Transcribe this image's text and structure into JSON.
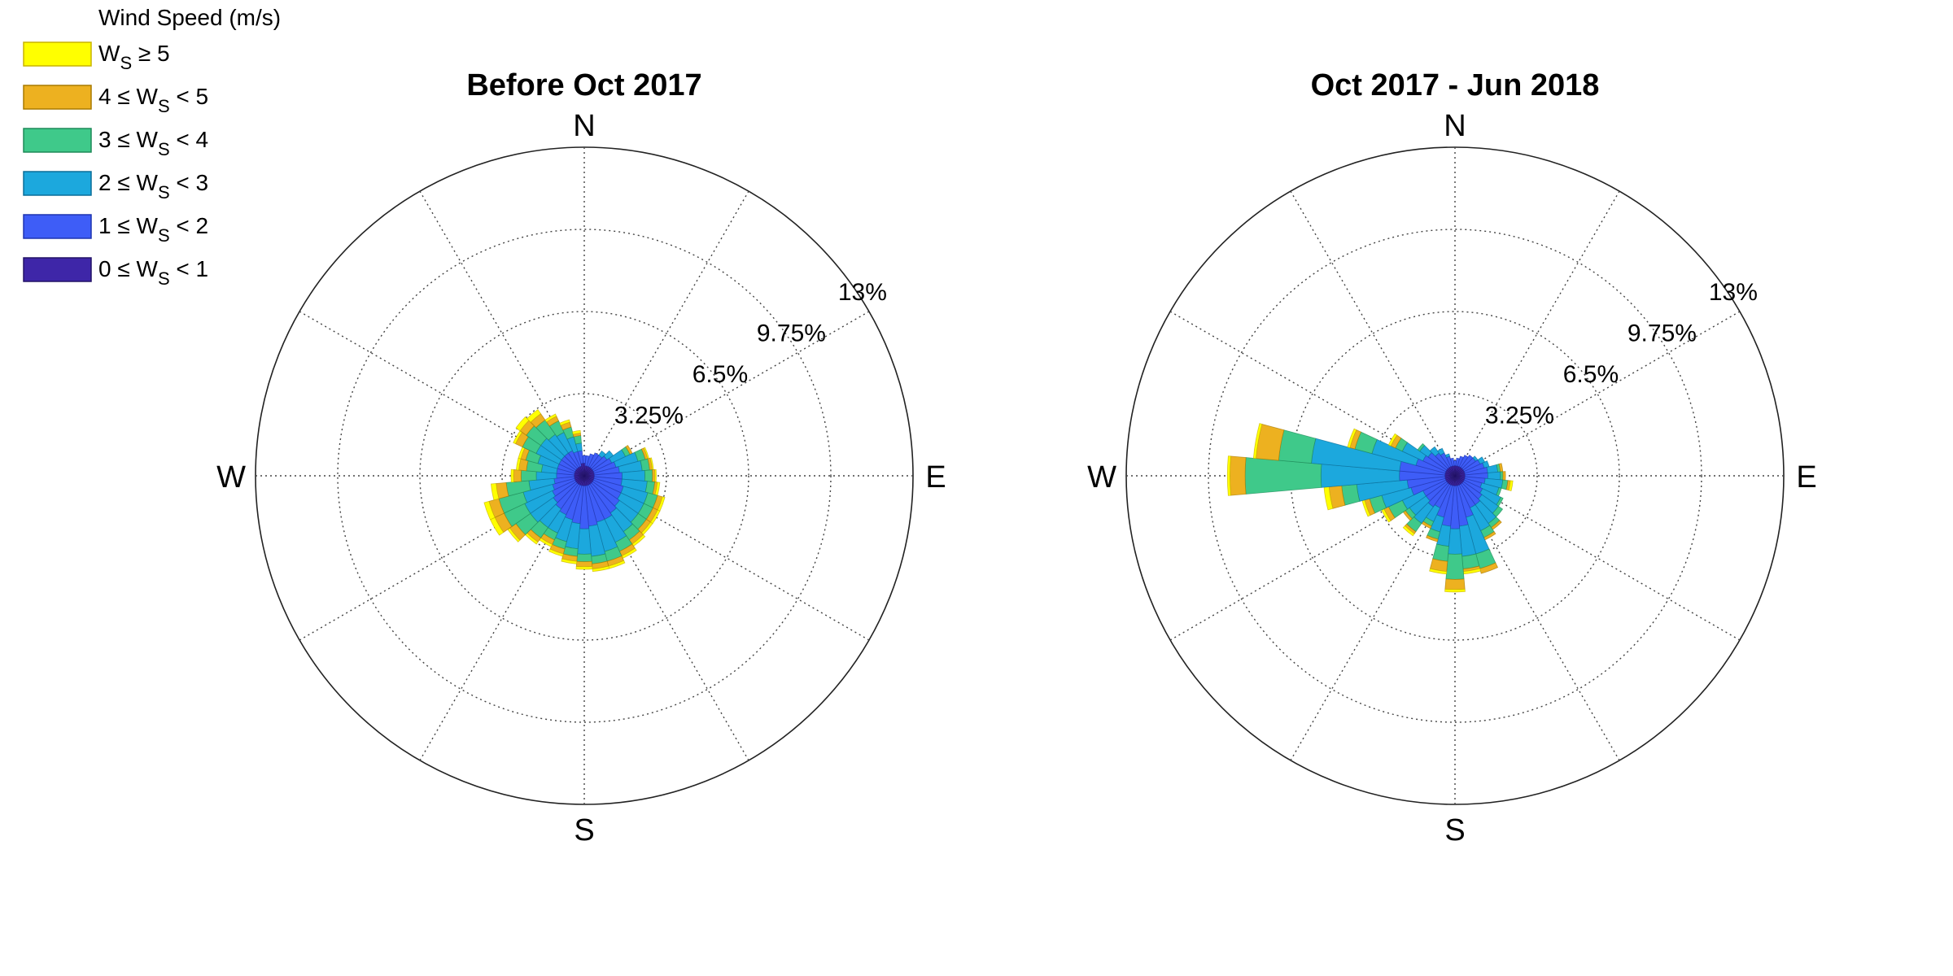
{
  "legend": {
    "title": "Wind Speed (m/s)",
    "entries": [
      {
        "pre": "W",
        "sub": "S",
        "post": " ≥ 5",
        "prefix": "",
        "color": "#FFFF00",
        "stroke": "#C8B400"
      },
      {
        "prefix": "4 ≤ ",
        "pre": "W",
        "sub": "S",
        "post": " < 5",
        "color": "#EDB120",
        "stroke": "#A87A00"
      },
      {
        "prefix": "3 ≤ ",
        "pre": "W",
        "sub": "S",
        "post": " < 4",
        "color": "#3FC98A",
        "stroke": "#1E8A58"
      },
      {
        "prefix": "2 ≤ ",
        "pre": "W",
        "sub": "S",
        "post": " < 3",
        "color": "#1CA8DD",
        "stroke": "#0A6E99"
      },
      {
        "prefix": "1 ≤ ",
        "pre": "W",
        "sub": "S",
        "post": " < 2",
        "color": "#3E5DF7",
        "stroke": "#1F35B0"
      },
      {
        "prefix": "0 ≤ ",
        "pre": "W",
        "sub": "S",
        "post": " < 1",
        "color": "#3E26A8",
        "stroke": "#221266"
      }
    ]
  },
  "chart_data": [
    {
      "type": "windrose",
      "title": "Before Oct 2017",
      "directions": [
        "N",
        "E",
        "S",
        "W"
      ],
      "radial_ticks": [
        "3.25%",
        "6.5%",
        "9.75%",
        "13%"
      ],
      "radial_max": 13,
      "bin_width_deg": 10,
      "sectors": [
        {
          "angle": 0,
          "c": [
            0.5,
            0.3,
            0.0,
            0.0,
            0.0,
            0.0
          ]
        },
        {
          "angle": 10,
          "c": [
            0.4,
            0.4,
            0.0,
            0.0,
            0.0,
            0.0
          ]
        },
        {
          "angle": 20,
          "c": [
            0.4,
            0.5,
            0.0,
            0.0,
            0.0,
            0.0
          ]
        },
        {
          "angle": 30,
          "c": [
            0.4,
            0.6,
            0.0,
            0.0,
            0.0,
            0.0
          ]
        },
        {
          "angle": 40,
          "c": [
            0.4,
            0.6,
            0.2,
            0.0,
            0.0,
            0.0
          ]
        },
        {
          "angle": 50,
          "c": [
            0.4,
            0.7,
            0.3,
            0.0,
            0.0,
            0.0
          ]
        },
        {
          "angle": 60,
          "c": [
            0.4,
            0.8,
            0.6,
            0.2,
            0.1,
            0.0
          ]
        },
        {
          "angle": 70,
          "c": [
            0.4,
            0.9,
            0.9,
            0.3,
            0.1,
            0.05
          ]
        },
        {
          "angle": 80,
          "c": [
            0.4,
            1.0,
            0.9,
            0.3,
            0.1,
            0.05
          ]
        },
        {
          "angle": 90,
          "c": [
            0.4,
            1.1,
            0.9,
            0.3,
            0.1,
            0.05
          ]
        },
        {
          "angle": 100,
          "c": [
            0.4,
            1.1,
            1.0,
            0.3,
            0.1,
            0.1
          ]
        },
        {
          "angle": 110,
          "c": [
            0.4,
            1.2,
            1.0,
            0.4,
            0.2,
            0.1
          ]
        },
        {
          "angle": 120,
          "c": [
            0.4,
            1.2,
            1.0,
            0.4,
            0.2,
            0.1
          ]
        },
        {
          "angle": 130,
          "c": [
            0.4,
            1.3,
            0.9,
            0.4,
            0.2,
            0.1
          ]
        },
        {
          "angle": 140,
          "c": [
            0.4,
            1.4,
            0.9,
            0.4,
            0.2,
            0.1
          ]
        },
        {
          "angle": 150,
          "c": [
            0.4,
            1.5,
            1.0,
            0.4,
            0.2,
            0.1
          ]
        },
        {
          "angle": 160,
          "c": [
            0.4,
            1.5,
            1.2,
            0.4,
            0.2,
            0.1
          ]
        },
        {
          "angle": 170,
          "c": [
            0.4,
            1.6,
            1.2,
            0.3,
            0.2,
            0.1
          ]
        },
        {
          "angle": 180,
          "c": [
            0.4,
            1.7,
            1.0,
            0.3,
            0.2,
            0.1
          ]
        },
        {
          "angle": 190,
          "c": [
            0.4,
            1.5,
            1.0,
            0.3,
            0.2,
            0.1
          ]
        },
        {
          "angle": 200,
          "c": [
            0.4,
            1.4,
            0.9,
            0.3,
            0.2,
            0.1
          ]
        },
        {
          "angle": 210,
          "c": [
            0.4,
            1.3,
            0.8,
            0.3,
            0.2,
            0.1
          ]
        },
        {
          "angle": 220,
          "c": [
            0.4,
            1.2,
            0.9,
            0.5,
            0.2,
            0.1
          ]
        },
        {
          "angle": 230,
          "c": [
            0.4,
            1.1,
            1.1,
            0.7,
            0.3,
            0.1
          ]
        },
        {
          "angle": 240,
          "c": [
            0.4,
            1.0,
            1.2,
            0.9,
            0.4,
            0.2
          ]
        },
        {
          "angle": 250,
          "c": [
            0.4,
            0.9,
            1.2,
            1.0,
            0.4,
            0.2
          ]
        },
        {
          "angle": 260,
          "c": [
            0.4,
            0.8,
            1.0,
            0.9,
            0.4,
            0.2
          ]
        },
        {
          "angle": 270,
          "c": [
            0.4,
            0.7,
            0.8,
            0.6,
            0.3,
            0.1
          ]
        },
        {
          "angle": 280,
          "c": [
            0.4,
            0.7,
            0.6,
            0.6,
            0.3,
            0.1
          ]
        },
        {
          "angle": 290,
          "c": [
            0.4,
            0.7,
            0.8,
            0.5,
            0.2,
            0.1
          ]
        },
        {
          "angle": 300,
          "c": [
            0.4,
            0.7,
            1.0,
            0.6,
            0.3,
            0.1
          ]
        },
        {
          "angle": 310,
          "c": [
            0.4,
            0.7,
            1.0,
            0.7,
            0.3,
            0.2
          ]
        },
        {
          "angle": 320,
          "c": [
            0.4,
            0.7,
            0.9,
            0.7,
            0.3,
            0.2
          ]
        },
        {
          "angle": 330,
          "c": [
            0.4,
            0.7,
            0.8,
            0.5,
            0.2,
            0.1
          ]
        },
        {
          "angle": 340,
          "c": [
            0.4,
            0.6,
            0.6,
            0.4,
            0.2,
            0.1
          ]
        },
        {
          "angle": 350,
          "c": [
            0.5,
            0.5,
            0.3,
            0.3,
            0.1,
            0.1
          ]
        }
      ]
    },
    {
      "type": "windrose",
      "title": "Oct 2017 - Jun 2018",
      "directions": [
        "N",
        "E",
        "S",
        "W"
      ],
      "radial_ticks": [
        "3.25%",
        "6.5%",
        "9.75%",
        "13%"
      ],
      "radial_max": 13,
      "bin_width_deg": 10,
      "sectors": [
        {
          "angle": 0,
          "c": [
            0.4,
            0.2,
            0.0,
            0.0,
            0.0,
            0.0
          ]
        },
        {
          "angle": 10,
          "c": [
            0.4,
            0.3,
            0.0,
            0.0,
            0.0,
            0.0
          ]
        },
        {
          "angle": 20,
          "c": [
            0.4,
            0.4,
            0.0,
            0.0,
            0.0,
            0.0
          ]
        },
        {
          "angle": 30,
          "c": [
            0.4,
            0.5,
            0.0,
            0.0,
            0.0,
            0.0
          ]
        },
        {
          "angle": 40,
          "c": [
            0.4,
            0.6,
            0.0,
            0.0,
            0.0,
            0.0
          ]
        },
        {
          "angle": 50,
          "c": [
            0.4,
            0.6,
            0.1,
            0.0,
            0.0,
            0.0
          ]
        },
        {
          "angle": 60,
          "c": [
            0.4,
            0.7,
            0.2,
            0.0,
            0.0,
            0.0
          ]
        },
        {
          "angle": 70,
          "c": [
            0.4,
            0.8,
            0.2,
            0.0,
            0.0,
            0.0
          ]
        },
        {
          "angle": 80,
          "c": [
            0.4,
            0.9,
            0.4,
            0.1,
            0.1,
            0.0
          ]
        },
        {
          "angle": 90,
          "c": [
            0.4,
            0.9,
            0.5,
            0.1,
            0.1,
            0.0
          ]
        },
        {
          "angle": 100,
          "c": [
            0.4,
            0.8,
            0.7,
            0.2,
            0.1,
            0.1
          ]
        },
        {
          "angle": 110,
          "c": [
            0.4,
            0.7,
            0.7,
            0.1,
            0.0,
            0.0
          ]
        },
        {
          "angle": 120,
          "c": [
            0.4,
            0.8,
            0.8,
            0.1,
            0.0,
            0.0
          ]
        },
        {
          "angle": 130,
          "c": [
            0.4,
            0.9,
            0.8,
            0.2,
            0.0,
            0.0
          ]
        },
        {
          "angle": 140,
          "c": [
            0.4,
            1.0,
            0.9,
            0.2,
            0.1,
            0.0
          ]
        },
        {
          "angle": 150,
          "c": [
            0.4,
            1.0,
            1.0,
            0.3,
            0.1,
            0.0
          ]
        },
        {
          "angle": 160,
          "c": [
            0.4,
            1.3,
            1.5,
            0.6,
            0.2,
            0.0
          ]
        },
        {
          "angle": 170,
          "c": [
            0.4,
            1.6,
            1.2,
            0.5,
            0.1,
            0.1
          ]
        },
        {
          "angle": 180,
          "c": [
            0.4,
            1.7,
            1.0,
            1.0,
            0.4,
            0.1
          ]
        },
        {
          "angle": 190,
          "c": [
            0.4,
            1.6,
            0.8,
            0.6,
            0.4,
            0.1
          ]
        },
        {
          "angle": 200,
          "c": [
            0.4,
            1.3,
            0.6,
            0.3,
            0.1,
            0.0
          ]
        },
        {
          "angle": 210,
          "c": [
            0.4,
            1.0,
            0.6,
            0.2,
            0.1,
            0.0
          ]
        },
        {
          "angle": 220,
          "c": [
            0.4,
            1.1,
            0.8,
            0.4,
            0.1,
            0.1
          ]
        },
        {
          "angle": 230,
          "c": [
            0.4,
            1.0,
            0.8,
            0.2,
            0.1,
            0.0
          ]
        },
        {
          "angle": 240,
          "c": [
            0.4,
            1.0,
            0.9,
            0.6,
            0.2,
            0.1
          ]
        },
        {
          "angle": 250,
          "c": [
            0.4,
            1.4,
            1.2,
            0.5,
            0.2,
            0.1
          ]
        },
        {
          "angle": 260,
          "c": [
            0.4,
            1.5,
            2.0,
            0.6,
            0.5,
            0.2
          ]
        },
        {
          "angle": 270,
          "c": [
            0.4,
            1.8,
            3.1,
            3.0,
            0.6,
            0.1
          ]
        },
        {
          "angle": 280,
          "c": [
            0.4,
            1.8,
            3.5,
            1.3,
            0.9,
            0.1
          ]
        },
        {
          "angle": 290,
          "c": [
            0.4,
            1.2,
            1.8,
            0.7,
            0.2,
            0.1
          ]
        },
        {
          "angle": 300,
          "c": [
            0.4,
            1.0,
            0.9,
            0.3,
            0.2,
            0.1
          ]
        },
        {
          "angle": 310,
          "c": [
            0.4,
            0.9,
            0.4,
            0.1,
            0.0,
            0.0
          ]
        },
        {
          "angle": 320,
          "c": [
            0.4,
            0.7,
            0.3,
            0.0,
            0.0,
            0.0
          ]
        },
        {
          "angle": 330,
          "c": [
            0.4,
            0.6,
            0.2,
            0.0,
            0.0,
            0.0
          ]
        },
        {
          "angle": 340,
          "c": [
            0.4,
            0.4,
            0.1,
            0.0,
            0.0,
            0.0
          ]
        },
        {
          "angle": 350,
          "c": [
            0.4,
            0.3,
            0.0,
            0.0,
            0.0,
            0.0
          ]
        }
      ]
    }
  ]
}
